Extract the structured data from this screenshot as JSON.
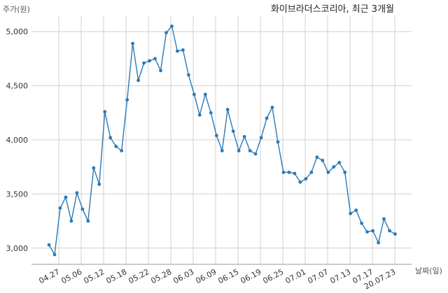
{
  "chart_data": {
    "type": "line",
    "title": "화이브라더스코리아, 최근 3개월",
    "ylabel": "주가(원)",
    "xlabel": "날짜(일)",
    "ylim": [
      2850,
      5150
    ],
    "yticks": [
      3000,
      3500,
      4000,
      4500,
      5000
    ],
    "ytick_labels": [
      "3,000",
      "3,500",
      "4,000",
      "4,500",
      "5,000"
    ],
    "xticks": [
      "04.27",
      "05.06",
      "05.12",
      "05.18",
      "05.22",
      "05.28",
      "06.03",
      "06.09",
      "06.15",
      "06.19",
      "06.25",
      "07.01",
      "07.07",
      "07.13",
      "07.17",
      "20.07.23"
    ],
    "grid": true,
    "color": "#2a7ab5",
    "series": [
      {
        "values": [
          3030,
          2940,
          3370,
          3470,
          3250,
          3510,
          3360,
          3250,
          3740,
          3590,
          4260,
          4020,
          3940,
          3900,
          4370,
          4890,
          4550,
          4710,
          4730,
          4750,
          4640,
          4990,
          5050,
          4820,
          4830,
          4600,
          4420,
          4230,
          4420,
          4250,
          4040,
          3900,
          4280,
          4080,
          3900,
          4030,
          3900,
          3870,
          4020,
          4200,
          4300,
          3980,
          3700,
          3700,
          3690,
          3610,
          3640,
          3700,
          3840,
          3810,
          3700,
          3750,
          3790,
          3700,
          3320,
          3350,
          3230,
          3150,
          3160,
          3050,
          3270,
          3160,
          3130
        ]
      }
    ]
  }
}
